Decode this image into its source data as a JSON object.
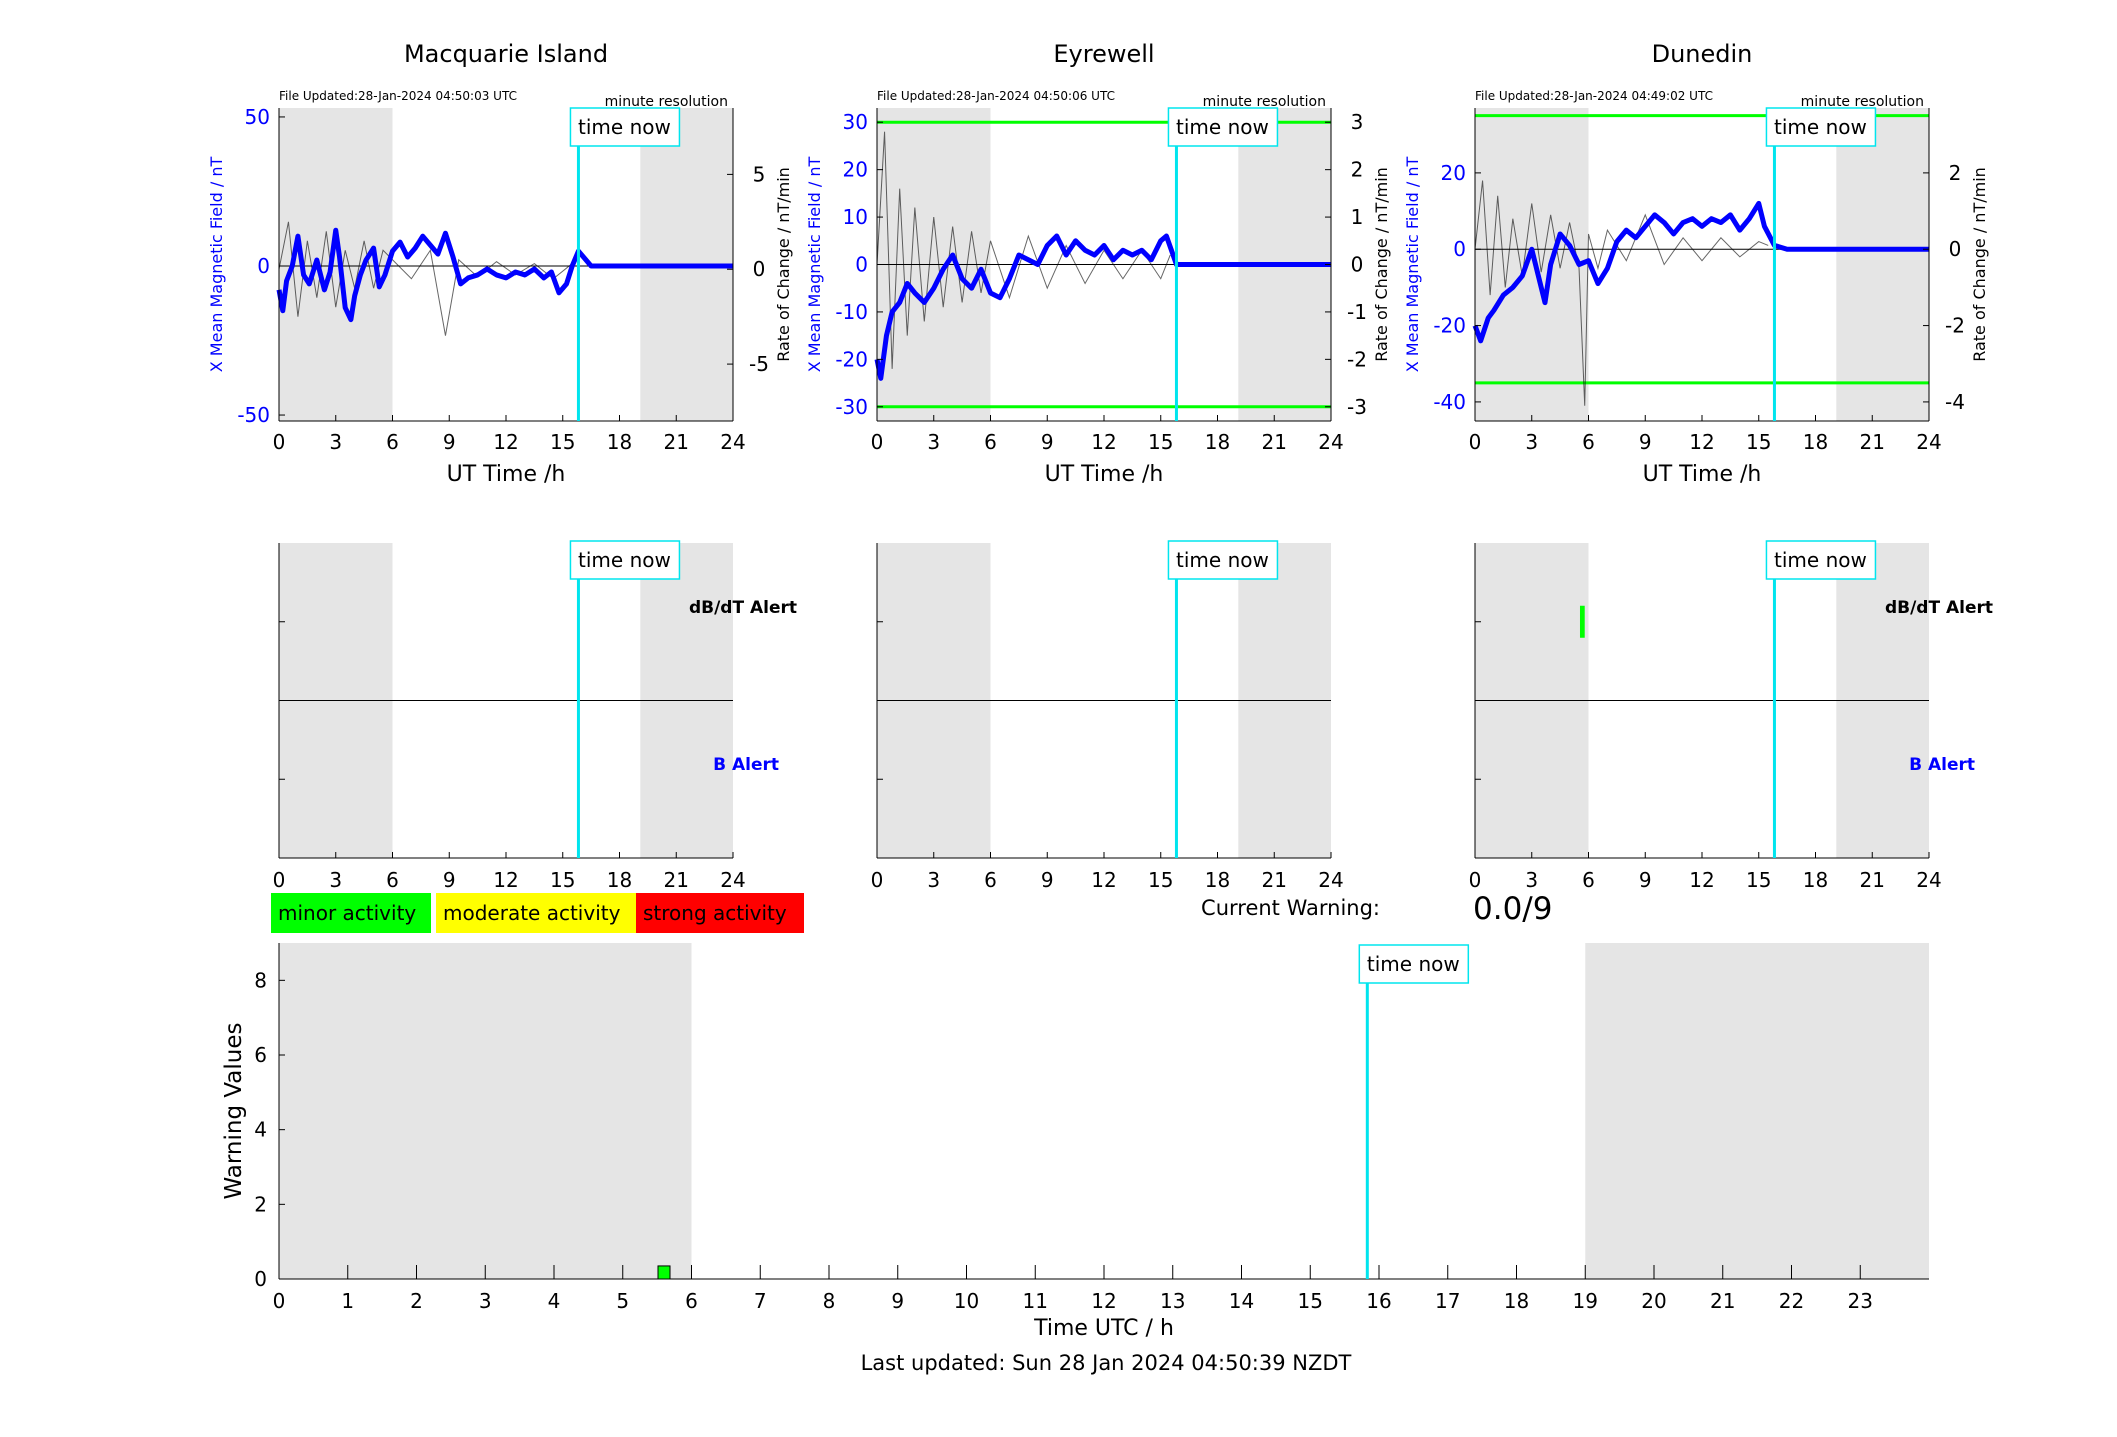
{
  "figure": {
    "current_warning_label": "Current Warning:",
    "current_warning_value": "0.0/9",
    "last_updated": "Last updated: Sun 28 Jan 2024 04:50:39 NZDT",
    "time_now_label": "time now",
    "legend": [
      {
        "label": "minor activity",
        "color": "#00ff00"
      },
      {
        "label": "moderate activity",
        "color": "#ffff00"
      },
      {
        "label": "strong activity",
        "color": "#ff0000"
      }
    ],
    "colors": {
      "field_line": "#0000ff",
      "rate_line": "#000000",
      "time_now": "#00e5ee",
      "threshold": "#00ff00",
      "night_shade": "#e5e5e5"
    }
  },
  "chart_data": [
    {
      "type": "line",
      "title": "Macquarie Island",
      "file_updated": "File Updated:28-Jan-2024 04:50:03 UTC",
      "resolution_label": "minute resolution",
      "xlabel": "UT Time /h",
      "ylabel_left": "X Mean Magnetic Field / nT",
      "ylabel_right": "Rate of Change / nT/min",
      "xlim": [
        0,
        24
      ],
      "xticks": [
        0,
        3,
        6,
        9,
        12,
        15,
        18,
        21,
        24
      ],
      "ylim_left": [
        -52,
        53
      ],
      "yticks_left": [
        -50,
        0,
        50
      ],
      "ylim_right": [
        -8,
        8.5
      ],
      "yticks_right": [
        -5,
        0,
        5
      ],
      "time_now": 15.83,
      "shaded": [
        [
          0,
          6
        ],
        [
          19.1,
          24
        ]
      ],
      "thresholds": [],
      "series": [
        {
          "name": "X Mean Magnetic Field",
          "axis": "left",
          "x": [
            0,
            0.2,
            0.4,
            0.7,
            1.0,
            1.3,
            1.6,
            2.0,
            2.4,
            2.7,
            3.0,
            3.2,
            3.5,
            3.8,
            4.0,
            4.3,
            4.6,
            5.0,
            5.3,
            5.6,
            6.0,
            6.4,
            6.8,
            7.2,
            7.6,
            8.0,
            8.4,
            8.8,
            9.2,
            9.6,
            10.0,
            10.5,
            11.0,
            11.5,
            12.0,
            12.5,
            13.0,
            13.5,
            14.0,
            14.4,
            14.8,
            15.2,
            15.5,
            15.83,
            16.5,
            20,
            24
          ],
          "y": [
            -8,
            -15,
            -5,
            0,
            10,
            -3,
            -6,
            2,
            -8,
            -2,
            12,
            3,
            -14,
            -18,
            -10,
            -3,
            2,
            6,
            -7,
            -3,
            5,
            8,
            3,
            6,
            10,
            7,
            4,
            11,
            3,
            -6,
            -4,
            -3,
            -1,
            -3,
            -4,
            -2,
            -3,
            -1,
            -4,
            -2,
            -9,
            -6,
            0,
            5,
            0,
            0,
            0
          ]
        },
        {
          "name": "Rate of Change",
          "axis": "right",
          "x": [
            0,
            0.5,
            1.0,
            1.5,
            2.0,
            2.5,
            3.0,
            3.5,
            4.0,
            4.5,
            5.0,
            5.5,
            6.0,
            7.0,
            8.0,
            8.8,
            9.5,
            10.5,
            11.5,
            12.5,
            13.5,
            14.5,
            15.5
          ],
          "y": [
            0,
            2.5,
            -2.5,
            1.5,
            -1.5,
            2,
            -2,
            1,
            -1,
            1.5,
            -1,
            1,
            0.5,
            -0.5,
            1,
            -3.5,
            0.5,
            -0.4,
            0.4,
            -0.3,
            0.3,
            -0.5,
            0.3
          ]
        }
      ]
    },
    {
      "type": "line",
      "title": "Eyrewell",
      "file_updated": "File Updated:28-Jan-2024 04:50:06 UTC",
      "resolution_label": "minute resolution",
      "xlabel": "UT Time /h",
      "ylabel_left": "X Mean Magnetic Field / nT",
      "ylabel_right": "Rate of Change / nT/min",
      "xlim": [
        0,
        24
      ],
      "xticks": [
        0,
        3,
        6,
        9,
        12,
        15,
        18,
        21,
        24
      ],
      "ylim_left": [
        -33,
        33
      ],
      "yticks_left": [
        -30,
        -20,
        -10,
        0,
        10,
        20,
        30
      ],
      "ylim_right": [
        -3.3,
        3.3
      ],
      "yticks_right": [
        -3,
        -2,
        -1,
        0,
        1,
        2,
        3
      ],
      "time_now": 15.83,
      "shaded": [
        [
          0,
          6
        ],
        [
          19.1,
          24
        ]
      ],
      "thresholds": [
        30,
        -30
      ],
      "series": [
        {
          "name": "X Mean Magnetic Field",
          "axis": "left",
          "x": [
            0,
            0.2,
            0.5,
            0.8,
            1.2,
            1.6,
            2.0,
            2.5,
            3.0,
            3.5,
            4.0,
            4.5,
            5.0,
            5.5,
            6.0,
            6.5,
            7.0,
            7.5,
            8.0,
            8.5,
            9.0,
            9.5,
            10.0,
            10.5,
            11.0,
            11.5,
            12.0,
            12.5,
            13.0,
            13.5,
            14.0,
            14.5,
            15.0,
            15.3,
            15.83,
            16.5,
            20,
            24
          ],
          "y": [
            -20,
            -24,
            -15,
            -10,
            -8,
            -4,
            -6,
            -8,
            -5,
            -1,
            2,
            -3,
            -5,
            -1,
            -6,
            -7,
            -3,
            2,
            1,
            0,
            4,
            6,
            2,
            5,
            3,
            2,
            4,
            1,
            3,
            2,
            3,
            1,
            5,
            6,
            0,
            0,
            0,
            0
          ]
        },
        {
          "name": "Rate of Change",
          "axis": "right",
          "x": [
            0,
            0.4,
            0.8,
            1.2,
            1.6,
            2.0,
            2.5,
            3.0,
            3.5,
            4.0,
            4.5,
            5.0,
            5.5,
            6.0,
            7.0,
            8.0,
            9.0,
            10.0,
            11.0,
            12.0,
            13.0,
            14.0,
            15.0,
            15.5
          ],
          "y": [
            0,
            2.8,
            -2.2,
            1.6,
            -1.5,
            1.2,
            -1.2,
            1,
            -0.9,
            0.8,
            -0.8,
            0.7,
            -0.6,
            0.5,
            -0.7,
            0.6,
            -0.5,
            0.4,
            -0.4,
            0.3,
            -0.3,
            0.3,
            -0.3,
            0.2
          ]
        }
      ]
    },
    {
      "type": "line",
      "title": "Dunedin",
      "file_updated": "File Updated:28-Jan-2024 04:49:02 UTC",
      "resolution_label": "minute resolution",
      "xlabel": "UT Time /h",
      "ylabel_left": "X Mean Magnetic Field / nT",
      "ylabel_right": "Rate of Change / nT/min",
      "xlim": [
        0,
        24
      ],
      "xticks": [
        0,
        3,
        6,
        9,
        12,
        15,
        18,
        21,
        24
      ],
      "ylim_left": [
        -45,
        37
      ],
      "yticks_left": [
        -40,
        -20,
        0,
        20
      ],
      "ylim_right": [
        -4.5,
        3.7
      ],
      "yticks_right": [
        -4,
        -2,
        0,
        2
      ],
      "time_now": 15.83,
      "shaded": [
        [
          0,
          6
        ],
        [
          19.1,
          24
        ]
      ],
      "thresholds": [
        35,
        -35
      ],
      "series": [
        {
          "name": "X Mean Magnetic Field",
          "axis": "left",
          "x": [
            0,
            0.3,
            0.7,
            1.0,
            1.5,
            2.0,
            2.5,
            3.0,
            3.3,
            3.7,
            4.0,
            4.5,
            5.0,
            5.5,
            6.0,
            6.5,
            7.0,
            7.5,
            8.0,
            8.5,
            9.0,
            9.5,
            10.0,
            10.5,
            11.0,
            11.5,
            12.0,
            12.5,
            13.0,
            13.5,
            14.0,
            14.5,
            15.0,
            15.3,
            15.83,
            16.5,
            20,
            24
          ],
          "y": [
            -20,
            -24,
            -18,
            -16,
            -12,
            -10,
            -7,
            0,
            -6,
            -14,
            -4,
            4,
            1,
            -4,
            -3,
            -9,
            -5,
            2,
            5,
            3,
            6,
            9,
            7,
            4,
            7,
            8,
            6,
            8,
            7,
            9,
            5,
            8,
            12,
            6,
            1,
            0,
            0,
            0
          ]
        },
        {
          "name": "Rate of Change",
          "axis": "right",
          "x": [
            0,
            0.4,
            0.8,
            1.2,
            1.6,
            2.0,
            2.5,
            3.0,
            3.5,
            4.0,
            4.5,
            5.0,
            5.5,
            5.8,
            6.0,
            6.5,
            7.0,
            8.0,
            9.0,
            10.0,
            11.0,
            12.0,
            13.0,
            14.0,
            15.0,
            15.5
          ],
          "y": [
            0,
            1.8,
            -1.2,
            1.4,
            -1,
            0.8,
            -0.7,
            1.2,
            -0.6,
            0.9,
            -0.5,
            0.7,
            -0.5,
            -4.1,
            0.4,
            -0.5,
            0.5,
            -0.3,
            0.9,
            -0.4,
            0.3,
            -0.3,
            0.3,
            -0.2,
            0.2,
            0.1
          ]
        }
      ]
    },
    {
      "type": "bar",
      "title": "",
      "xlabel": "",
      "top_label": "dB/dT Alert",
      "bottom_label": "B Alert",
      "xlim": [
        0,
        24
      ],
      "xticks": [
        0,
        3,
        6,
        9,
        12,
        15,
        18,
        21,
        24
      ],
      "time_now": 15.83,
      "shaded": [
        [
          0,
          6
        ],
        [
          19.1,
          24
        ]
      ],
      "alerts": []
    },
    {
      "type": "bar",
      "title": "",
      "xlabel": "",
      "top_label": "",
      "bottom_label": "",
      "xlim": [
        0,
        24
      ],
      "xticks": [
        0,
        3,
        6,
        9,
        12,
        15,
        18,
        21,
        24
      ],
      "time_now": 15.83,
      "shaded": [
        [
          0,
          6
        ],
        [
          19.1,
          24
        ]
      ],
      "alerts": []
    },
    {
      "type": "bar",
      "title": "",
      "xlabel": "",
      "top_label": "dB/dT Alert",
      "bottom_label": "B Alert",
      "xlim": [
        0,
        24
      ],
      "xticks": [
        0,
        3,
        6,
        9,
        12,
        15,
        18,
        21,
        24
      ],
      "time_now": 15.83,
      "shaded": [
        [
          0,
          6
        ],
        [
          19.1,
          24
        ]
      ],
      "alerts": [
        {
          "row": "dB/dT",
          "start": 5.55,
          "end": 5.8,
          "level": "minor"
        }
      ]
    },
    {
      "type": "bar",
      "title": "",
      "xlabel": "Time UTC / h",
      "ylabel": "Warning Values",
      "xlim": [
        0,
        24
      ],
      "xticks": [
        0,
        1,
        2,
        3,
        4,
        5,
        6,
        7,
        8,
        9,
        10,
        11,
        12,
        13,
        14,
        15,
        16,
        17,
        18,
        19,
        20,
        21,
        22,
        23
      ],
      "ylim": [
        0,
        9
      ],
      "yticks": [
        0,
        2,
        4,
        6,
        8
      ],
      "time_now": 15.83,
      "shaded": [
        [
          0,
          6
        ],
        [
          19,
          24
        ]
      ],
      "values": [
        {
          "x": 5.6,
          "y": 0.35,
          "level": "minor"
        }
      ]
    }
  ]
}
